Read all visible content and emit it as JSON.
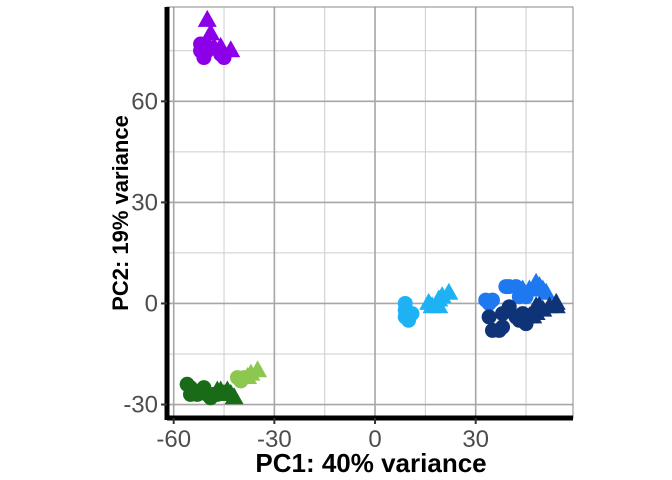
{
  "chart_data": {
    "type": "scatter",
    "title": "",
    "xlabel": "PC1: 40% variance",
    "ylabel": "PC2: 19% variance",
    "xlim": [
      -62,
      59
    ],
    "ylim": [
      -34,
      88
    ],
    "x_ticks": [
      -60,
      -30,
      0,
      30
    ],
    "y_ticks": [
      -30,
      0,
      30,
      60
    ],
    "x_tick_labels": [
      "-60",
      "-30",
      "0",
      "30"
    ],
    "y_tick_labels": [
      "-30",
      "0",
      "30",
      "60"
    ],
    "grid": true,
    "legend": "none",
    "series": [
      {
        "color": "#8B00E8",
        "marker": "circle",
        "points": [
          [
            -52,
            75
          ],
          [
            -51,
            73
          ],
          [
            -50,
            75
          ],
          [
            -52,
            77
          ],
          [
            -45,
            73
          ],
          [
            -46,
            74
          ]
        ]
      },
      {
        "color": "#8B00E8",
        "marker": "triangle",
        "points": [
          [
            -50,
            84
          ],
          [
            -49,
            80
          ],
          [
            -50,
            77
          ],
          [
            -48,
            76
          ],
          [
            -46,
            76
          ],
          [
            -43,
            75
          ]
        ]
      },
      {
        "color": "#1EB2F5",
        "marker": "circle",
        "points": [
          [
            9,
            0
          ],
          [
            9,
            -2
          ],
          [
            10,
            -3
          ],
          [
            9,
            -4
          ],
          [
            10,
            -5
          ],
          [
            11,
            -3
          ]
        ]
      },
      {
        "color": "#1EB2F5",
        "marker": "triangle",
        "points": [
          [
            16,
            0
          ],
          [
            17,
            -1
          ],
          [
            19,
            -1
          ],
          [
            19,
            1
          ],
          [
            20,
            2
          ],
          [
            22,
            3
          ]
        ]
      },
      {
        "color": "#1E78F0",
        "marker": "circle",
        "points": [
          [
            33,
            1
          ],
          [
            34,
            0
          ],
          [
            35,
            1
          ],
          [
            39,
            5
          ],
          [
            40,
            5
          ],
          [
            42,
            5
          ],
          [
            43,
            2
          ],
          [
            45,
            2
          ]
        ]
      },
      {
        "color": "#1E78F0",
        "marker": "triangle",
        "points": [
          [
            44,
            4
          ],
          [
            46,
            4
          ],
          [
            48,
            6
          ],
          [
            49,
            5
          ],
          [
            50,
            4
          ],
          [
            51,
            3
          ]
        ]
      },
      {
        "color": "#0E3477",
        "marker": "circle",
        "points": [
          [
            34,
            -4
          ],
          [
            35,
            -8
          ],
          [
            37,
            -8
          ],
          [
            38,
            -7
          ],
          [
            38,
            -3
          ],
          [
            40,
            -1
          ],
          [
            42,
            -4
          ],
          [
            43,
            -5
          ],
          [
            44,
            -3
          ],
          [
            45,
            -6
          ]
        ]
      },
      {
        "color": "#0E3477",
        "marker": "triangle",
        "points": [
          [
            45,
            -4
          ],
          [
            46,
            -4
          ],
          [
            47,
            -4
          ],
          [
            48,
            -1
          ],
          [
            48,
            -3
          ],
          [
            49,
            -1
          ],
          [
            50,
            -2
          ],
          [
            52,
            -1
          ],
          [
            54,
            0
          ],
          [
            54,
            -1
          ]
        ]
      },
      {
        "color": "#1A6B18",
        "marker": "circle",
        "points": [
          [
            -56,
            -24
          ],
          [
            -55,
            -25
          ],
          [
            -55,
            -27
          ],
          [
            -53,
            -27
          ],
          [
            -52,
            -26
          ],
          [
            -51,
            -25
          ],
          [
            -50,
            -27
          ],
          [
            -49,
            -28
          ],
          [
            -48,
            -27
          ],
          [
            -47,
            -27
          ]
        ]
      },
      {
        "color": "#1A6B18",
        "marker": "triangle",
        "points": [
          [
            -47,
            -26
          ],
          [
            -46,
            -26
          ],
          [
            -45,
            -27
          ],
          [
            -44,
            -26
          ],
          [
            -43,
            -27
          ],
          [
            -42,
            -28
          ]
        ]
      },
      {
        "color": "#8CC850",
        "marker": "circle",
        "points": [
          [
            -41,
            -22
          ],
          [
            -40,
            -23
          ],
          [
            -39,
            -22
          ]
        ]
      },
      {
        "color": "#8CC850",
        "marker": "triangle",
        "points": [
          [
            -38,
            -22
          ],
          [
            -37,
            -21
          ],
          [
            -35,
            -20
          ]
        ]
      }
    ]
  }
}
